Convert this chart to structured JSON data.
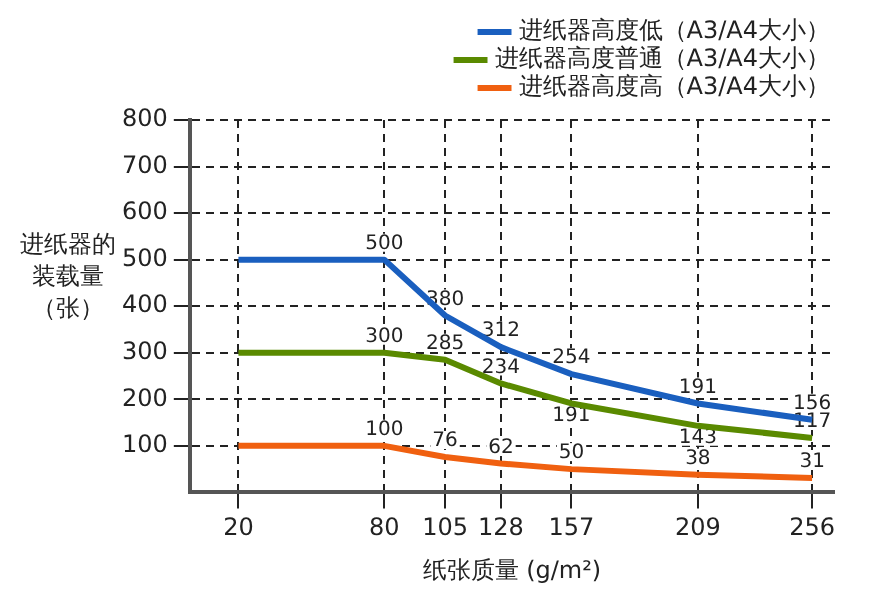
{
  "chart_data": {
    "type": "line",
    "ylabel": "进纸器的装载量（张）",
    "xlabel": "纸张质量 (g/m²)",
    "x": [
      20,
      80,
      105,
      128,
      157,
      209,
      256
    ],
    "series": [
      {
        "name": "进纸器高度低（A3/A4大小）",
        "color": "#1a5fbf",
        "values": [
          500,
          500,
          380,
          312,
          254,
          191,
          156
        ],
        "value_labels": [
          null,
          "500",
          "380",
          "312",
          "254",
          "191",
          "156"
        ]
      },
      {
        "name": "进纸器高度普通（A3/A4大小）",
        "color": "#5a8a00",
        "values": [
          300,
          300,
          285,
          234,
          191,
          143,
          117
        ],
        "value_labels": [
          null,
          "300",
          "285",
          "234",
          "191",
          "143",
          "117"
        ]
      },
      {
        "name": "进纸器高度高（A3/A4大小）",
        "color": "#f06010",
        "values": [
          100,
          100,
          76,
          62,
          50,
          38,
          31
        ],
        "value_labels": [
          null,
          "100",
          "76",
          "62",
          "50",
          "38",
          "31"
        ]
      }
    ],
    "xlim": [
      0,
      265
    ],
    "xticks": [
      20,
      80,
      105,
      128,
      157,
      209,
      256
    ],
    "ylim": [
      0,
      800
    ],
    "yticks": [
      100,
      200,
      300,
      400,
      500,
      600,
      700,
      800
    ],
    "grid": true,
    "legend": "top right",
    "marker": "none",
    "line_style": "solid"
  }
}
